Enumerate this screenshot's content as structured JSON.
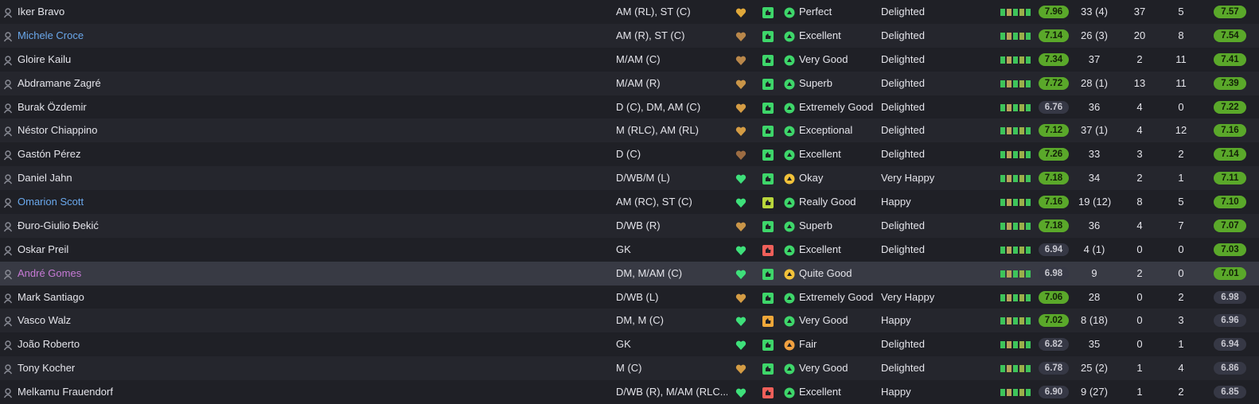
{
  "table": {
    "rows": [
      {
        "name": "Iker Bravo",
        "position": "AM (RL), ST (C)",
        "status": "Perfect",
        "happiness": "Delighted",
        "form": "7.96",
        "apps": "33 (4)",
        "goals": "37",
        "assists": "5",
        "avg": "7.57",
        "heart_color": "#e0a83a",
        "thumb_color": "#3ed66a",
        "status_color": "#3ed66a"
      },
      {
        "name": "Michele Croce",
        "position": "AM (R), ST (C)",
        "status": "Excellent",
        "happiness": "Delighted",
        "form": "7.14",
        "apps": "26 (3)",
        "goals": "20",
        "assists": "8",
        "avg": "7.54",
        "name_color": "#6aa8ec",
        "heart_color": "#b9874a",
        "thumb_color": "#3ed66a",
        "status_color": "#3ed66a"
      },
      {
        "name": "Gloire Kailu",
        "position": "M/AM (C)",
        "status": "Very Good",
        "happiness": "Delighted",
        "form": "7.34",
        "apps": "37",
        "goals": "2",
        "assists": "11",
        "avg": "7.41",
        "heart_color": "#b9874a",
        "thumb_color": "#3ed66a",
        "status_color": "#3ed66a"
      },
      {
        "name": "Abdramane Zagré",
        "position": "M/AM (R)",
        "status": "Superb",
        "happiness": "Delighted",
        "form": "7.72",
        "apps": "28 (1)",
        "goals": "13",
        "assists": "11",
        "avg": "7.39",
        "heart_color": "#c99548",
        "thumb_color": "#3ed66a",
        "status_color": "#3ed66a"
      },
      {
        "name": "Burak Özdemir",
        "position": "D (C), DM, AM (C)",
        "status": "Extremely Good",
        "happiness": "Delighted",
        "form": "6.76",
        "apps": "36",
        "goals": "4",
        "assists": "0",
        "avg": "7.22",
        "heart_color": "#d49c44",
        "thumb_color": "#3ed66a",
        "status_color": "#3ed66a"
      },
      {
        "name": "Néstor Chiappino",
        "position": "M (RLC), AM (RL)",
        "status": "Exceptional",
        "happiness": "Delighted",
        "form": "7.12",
        "apps": "37 (1)",
        "goals": "4",
        "assists": "12",
        "avg": "7.16",
        "heart_color": "#d49c44",
        "thumb_color": "#3ed66a",
        "status_color": "#3ed66a"
      },
      {
        "name": "Gastón Pérez",
        "position": "D (C)",
        "status": "Excellent",
        "happiness": "Delighted",
        "form": "7.26",
        "apps": "33",
        "goals": "3",
        "assists": "2",
        "avg": "7.14",
        "heart_color": "#9c6c42",
        "thumb_color": "#3ed66a",
        "status_color": "#3ed66a"
      },
      {
        "name": "Daniel Jahn",
        "position": "D/WB/M (L)",
        "status": "Okay",
        "happiness": "Very Happy",
        "form": "7.18",
        "apps": "34",
        "goals": "2",
        "assists": "1",
        "avg": "7.11",
        "heart_color": "#3ee07a",
        "thumb_color": "#3ed66a",
        "status_color": "#f2c23a"
      },
      {
        "name": "Omarion Scott",
        "position": "AM (RC), ST (C)",
        "status": "Really Good",
        "happiness": "Happy",
        "form": "7.16",
        "apps": "19 (12)",
        "goals": "8",
        "assists": "5",
        "avg": "7.10",
        "name_color": "#6aa8ec",
        "heart_color": "#3ee07a",
        "thumb_color": "#b9d63c",
        "status_color": "#3ed66a"
      },
      {
        "name": "Đuro-Giulio Đekić",
        "position": "D/WB (R)",
        "status": "Superb",
        "happiness": "Delighted",
        "form": "7.18",
        "apps": "36",
        "goals": "4",
        "assists": "7",
        "avg": "7.07",
        "heart_color": "#c99548",
        "thumb_color": "#3ed66a",
        "status_color": "#3ed66a"
      },
      {
        "name": "Oskar Preil",
        "position": "GK",
        "status": "Excellent",
        "happiness": "Delighted",
        "form": "6.94",
        "apps": "4 (1)",
        "goals": "0",
        "assists": "0",
        "avg": "7.03",
        "heart_color": "#3ee07a",
        "thumb_color": "#f0605a",
        "status_color": "#3ed66a"
      },
      {
        "name": "André Gomes",
        "position": "DM, M/AM (C)",
        "status": "Quite Good",
        "form": "6.98",
        "apps": "9",
        "goals": "2",
        "assists": "0",
        "avg": "7.01",
        "name_color": "#c77ad6",
        "highlight": true,
        "heart_color": "#3ee07a",
        "thumb_color": "#3ed66a",
        "status_color": "#f2c23a"
      },
      {
        "name": "Mark Santiago",
        "position": "D/WB (L)",
        "status": "Extremely Good",
        "happiness": "Very Happy",
        "form": "7.06",
        "apps": "28",
        "goals": "0",
        "assists": "2",
        "avg": "6.98",
        "heart_color": "#d49c44",
        "thumb_color": "#3ed66a",
        "status_color": "#3ed66a"
      },
      {
        "name": "Vasco Walz",
        "position": "DM, M (C)",
        "status": "Very Good",
        "happiness": "Happy",
        "form": "7.02",
        "apps": "8 (18)",
        "goals": "0",
        "assists": "3",
        "avg": "6.96",
        "heart_color": "#3ee07a",
        "thumb_color": "#f0a83a",
        "status_color": "#3ed66a"
      },
      {
        "name": "João Roberto",
        "position": "GK",
        "status": "Fair",
        "happiness": "Delighted",
        "form": "6.82",
        "apps": "35",
        "goals": "0",
        "assists": "1",
        "avg": "6.94",
        "heart_color": "#3ee07a",
        "thumb_color": "#3ed66a",
        "status_color": "#f0a040"
      },
      {
        "name": "Tony Kocher",
        "position": "M (C)",
        "status": "Very Good",
        "happiness": "Delighted",
        "form": "6.78",
        "apps": "25 (2)",
        "goals": "1",
        "assists": "4",
        "avg": "6.86",
        "heart_color": "#d49c44",
        "thumb_color": "#3ed66a",
        "status_color": "#3ed66a"
      },
      {
        "name": "Melkamu Frauendorf",
        "position": "D/WB (R), M/AM (RLC...",
        "status": "Excellent",
        "happiness": "Happy",
        "form": "6.90",
        "apps": "9 (27)",
        "goals": "1",
        "assists": "2",
        "avg": "6.85",
        "heart_color": "#3ee07a",
        "thumb_color": "#f0605a",
        "status_color": "#3ed66a"
      }
    ]
  }
}
